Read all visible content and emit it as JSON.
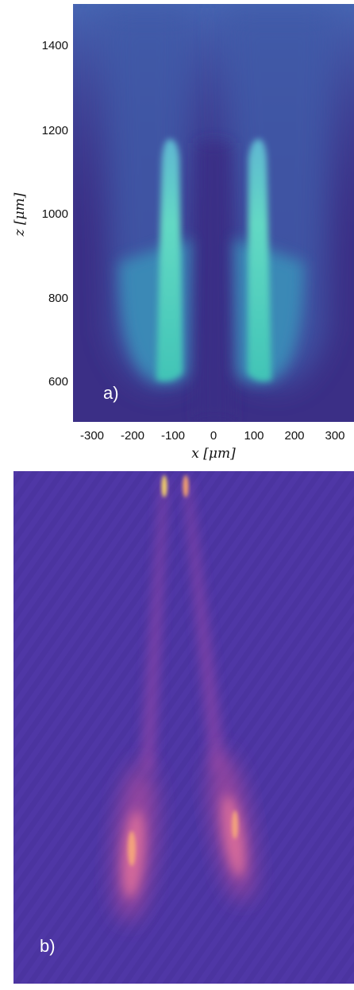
{
  "figure": {
    "panel_a": {
      "label": "a)",
      "xlabel": "x [μm]",
      "ylabel": "z [μm]",
      "xticks": [
        "-300",
        "-200",
        "-100",
        "0",
        "100",
        "200",
        "300"
      ],
      "yticks": [
        "1400",
        "1200",
        "1000",
        "800",
        "600"
      ],
      "colormap": "viridis",
      "background_color": "#3b2f86"
    },
    "panel_b": {
      "label": "b)",
      "colormap": "plasma",
      "background_color": "#4b34a0"
    }
  }
}
